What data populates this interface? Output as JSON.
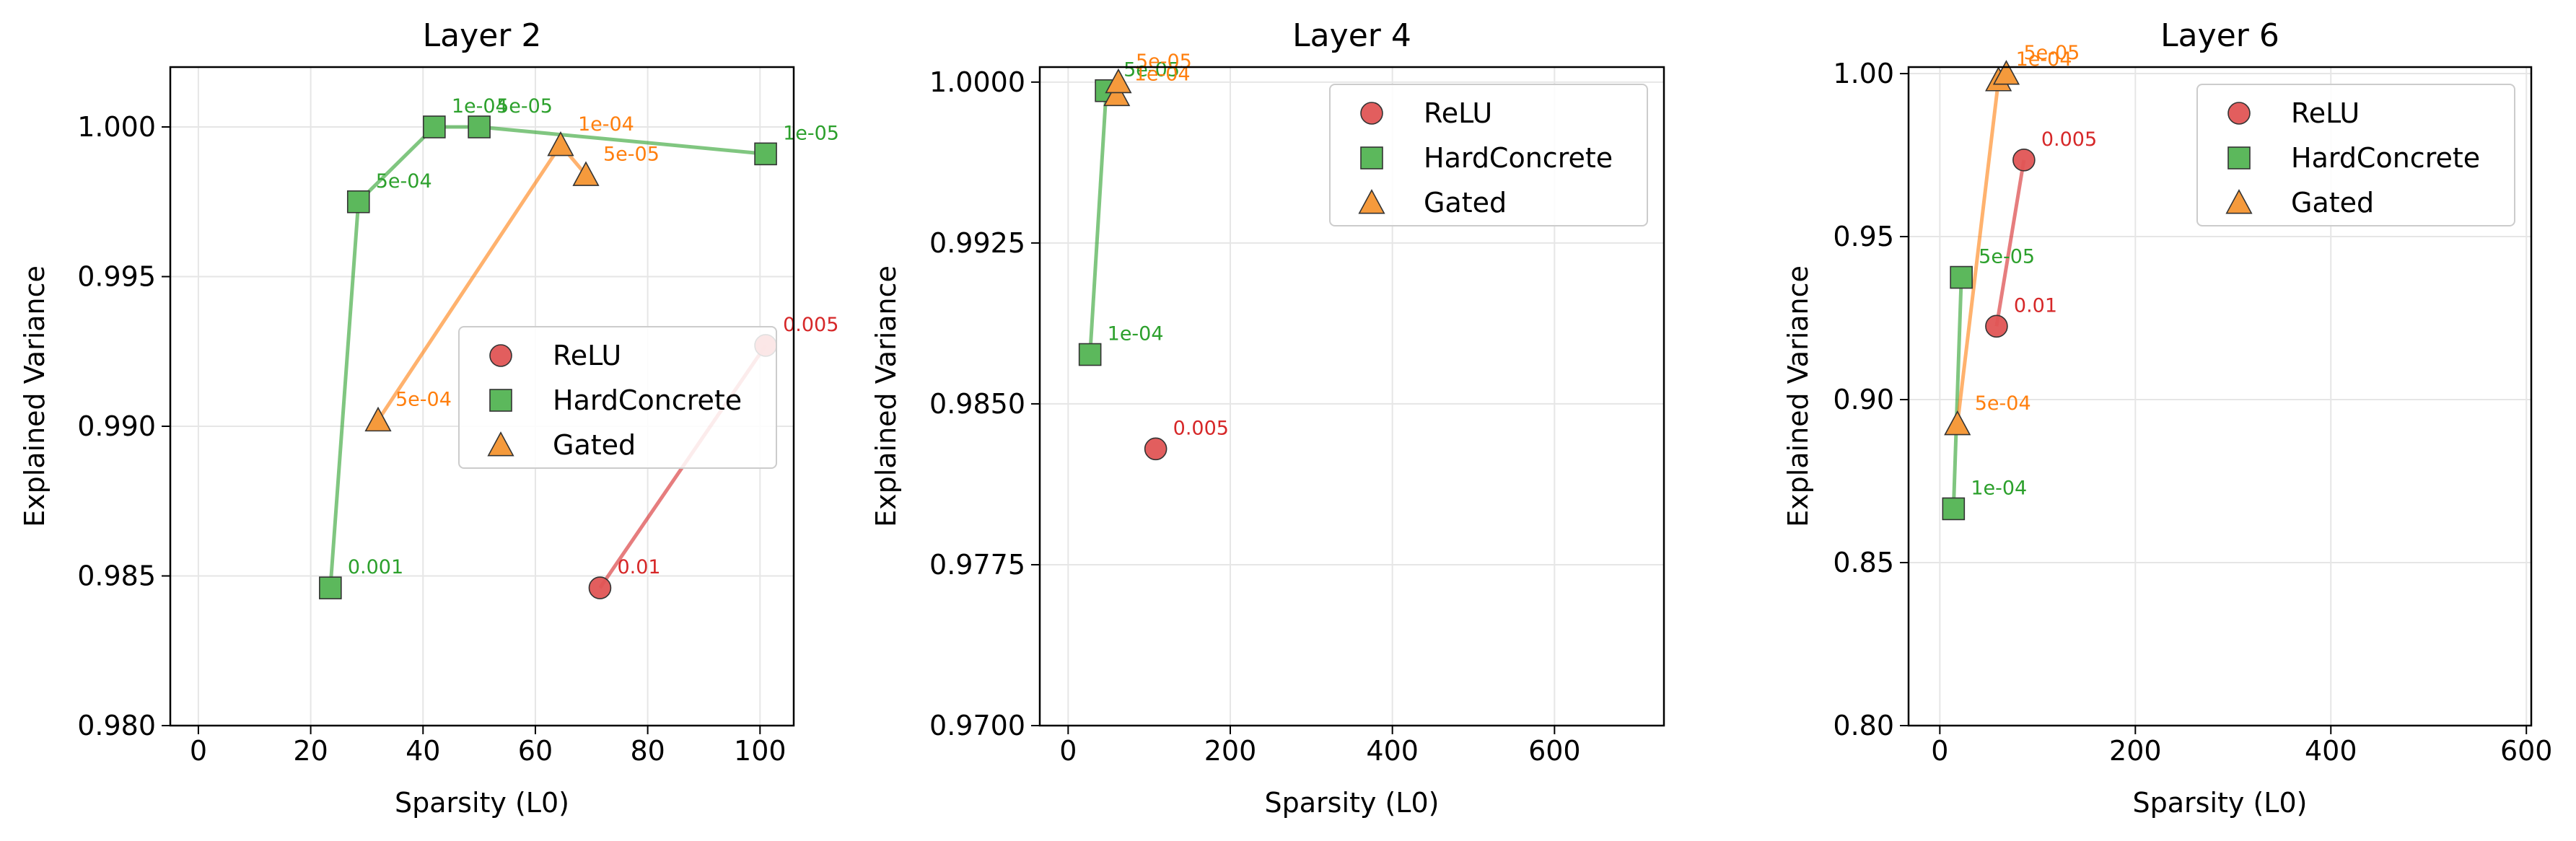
{
  "figure": {
    "xlabel": "Sparsity (L0)",
    "ylabel": "Explained Variance"
  },
  "legend": {
    "entries": [
      "ReLU",
      "HardConcrete",
      "Gated"
    ]
  },
  "series_style": {
    "ReLU": {
      "color": "#d62728",
      "marker": "circle",
      "fill": "#e05555"
    },
    "HardConcrete": {
      "color": "#2ca02c",
      "marker": "square",
      "fill": "#5cb85c"
    },
    "Gated": {
      "color": "#ff7f0e",
      "marker": "triangle",
      "fill": "#f59a3c"
    }
  },
  "chart_data": [
    {
      "type": "scatter",
      "title": "Layer 2",
      "xlabel": "Sparsity (L0)",
      "ylabel": "Explained Variance",
      "xlim": [
        -5,
        106
      ],
      "ylim": [
        0.98,
        1.002
      ],
      "xticks": [
        0,
        20,
        40,
        60,
        80,
        100
      ],
      "xtick_labels": [
        "0",
        "20",
        "40",
        "60",
        "80",
        "100"
      ],
      "yticks": [
        0.98,
        0.985,
        0.99,
        0.995,
        1.0
      ],
      "ytick_labels": [
        "0.980",
        "0.985",
        "0.990",
        "0.995",
        "1.000"
      ],
      "grid": true,
      "legend_position": "center-right",
      "series": [
        {
          "name": "ReLU",
          "points": [
            {
              "x": 71.5,
              "y": 0.9846,
              "label": "0.01"
            },
            {
              "x": 101.0,
              "y": 0.9927,
              "label": "0.005"
            }
          ]
        },
        {
          "name": "HardConcrete",
          "points": [
            {
              "x": 23.5,
              "y": 0.9846,
              "label": "0.001"
            },
            {
              "x": 28.5,
              "y": 0.9975,
              "label": "5e-04"
            },
            {
              "x": 42.0,
              "y": 1.0,
              "label": "1e-04"
            },
            {
              "x": 50.0,
              "y": 1.0,
              "label": "5e-05"
            },
            {
              "x": 101.0,
              "y": 0.9991,
              "label": "1e-05"
            }
          ]
        },
        {
          "name": "Gated",
          "points": [
            {
              "x": 32.0,
              "y": 0.9902,
              "label": "5e-04"
            },
            {
              "x": 64.5,
              "y": 0.9994,
              "label": "1e-04"
            },
            {
              "x": 69.0,
              "y": 0.9984,
              "label": "5e-05"
            }
          ]
        }
      ]
    },
    {
      "type": "scatter",
      "title": "Layer 4",
      "xlabel": "Sparsity (L0)",
      "ylabel": "Explained Variance",
      "xlim": [
        -35,
        735
      ],
      "ylim": [
        0.97,
        1.0007
      ],
      "xticks": [
        0,
        200,
        400,
        600
      ],
      "xtick_labels": [
        "0",
        "200",
        "400",
        "600"
      ],
      "yticks": [
        0.97,
        0.9775,
        0.985,
        0.9925,
        1.0
      ],
      "ytick_labels": [
        "0.9700",
        "0.9775",
        "0.9850",
        "0.9925",
        "1.0000"
      ],
      "grid": true,
      "legend_position": "top-right",
      "series": [
        {
          "name": "ReLU",
          "points": [
            {
              "x": 108.0,
              "y": 0.9829,
              "label": "0.005"
            }
          ]
        },
        {
          "name": "HardConcrete",
          "points": [
            {
              "x": 27.0,
              "y": 0.9873,
              "label": "1e-04"
            },
            {
              "x": 47.0,
              "y": 0.9996,
              "label": "5e-05"
            }
          ]
        },
        {
          "name": "Gated",
          "points": [
            {
              "x": 60.0,
              "y": 0.9994,
              "label": "1e-04"
            },
            {
              "x": 62.0,
              "y": 1.0,
              "label": "5e-05"
            }
          ]
        }
      ]
    },
    {
      "type": "scatter",
      "title": "Layer 6",
      "xlabel": "Sparsity (L0)",
      "ylabel": "Explained Variance",
      "xlim": [
        -32,
        605
      ],
      "ylim": [
        0.8,
        1.002
      ],
      "xticks": [
        0,
        200,
        400,
        600
      ],
      "xtick_labels": [
        "0",
        "200",
        "400",
        "600"
      ],
      "yticks": [
        0.8,
        0.85,
        0.9,
        0.95,
        1.0
      ],
      "ytick_labels": [
        "0.80",
        "0.85",
        "0.90",
        "0.95",
        "1.00"
      ],
      "grid": true,
      "legend_position": "top-right",
      "series": [
        {
          "name": "ReLU",
          "points": [
            {
              "x": 58.0,
              "y": 0.9225,
              "label": "0.01"
            },
            {
              "x": 86.0,
              "y": 0.9735,
              "label": "0.005"
            }
          ]
        },
        {
          "name": "HardConcrete",
          "points": [
            {
              "x": 14.0,
              "y": 0.8665,
              "label": "1e-04"
            },
            {
              "x": 22.0,
              "y": 0.9375,
              "label": "5e-05"
            }
          ]
        },
        {
          "name": "Gated",
          "points": [
            {
              "x": 18.0,
              "y": 0.8925,
              "label": "5e-04"
            },
            {
              "x": 60.0,
              "y": 0.998,
              "label": "1e-04"
            },
            {
              "x": 68.0,
              "y": 1.0,
              "label": "5e-05"
            }
          ]
        }
      ]
    }
  ]
}
